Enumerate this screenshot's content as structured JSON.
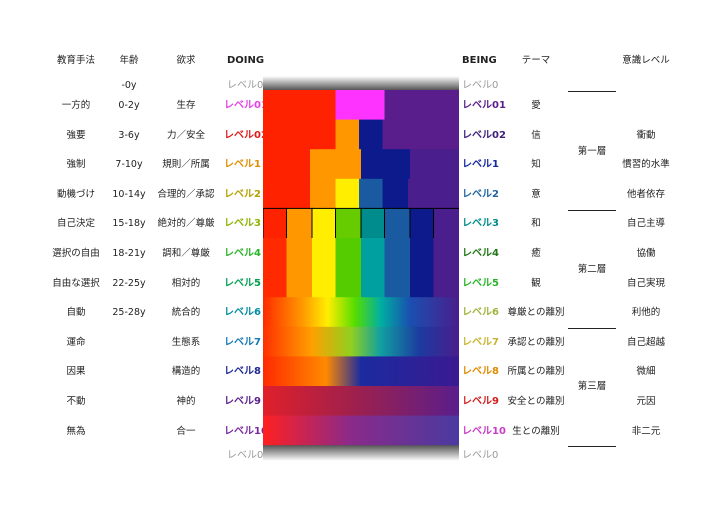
{
  "headers": {
    "method": "教育手法",
    "age": "年齢",
    "desire": "欲求",
    "doing": "DOING",
    "being": "BEING",
    "theme": "テーマ",
    "consciousness": "意識レベル"
  },
  "top_level0": {
    "age": "-0y",
    "doing": "レベル0",
    "being": "レベル0"
  },
  "bottom_level0": {
    "doing": "レベル0",
    "being": "レベル0"
  },
  "rows": [
    {
      "method": "一方的",
      "age": "0-2y",
      "desire": "生存",
      "doing": "レベル01",
      "being": "レベル01",
      "theme": "愛",
      "consciousness": "",
      "doing_color": "#e640e6",
      "being_color": "#5a1e8c"
    },
    {
      "method": "強要",
      "age": "3-6y",
      "desire": "力／安全",
      "doing": "レベル02",
      "being": "レベル02",
      "theme": "信",
      "consciousness": "衝動",
      "doing_color": "#e01b1b",
      "being_color": "#3c1e78"
    },
    {
      "method": "強制",
      "age": "7-10y",
      "desire": "規則／所属",
      "doing": "レベル1",
      "being": "レベル1",
      "theme": "知",
      "consciousness": "慣習的水準",
      "doing_color": "#e08c00",
      "being_color": "#1428a0"
    },
    {
      "method": "動機づけ",
      "age": "10-14y",
      "desire": "合理的／承認",
      "doing": "レベル2",
      "being": "レベル2",
      "theme": "意",
      "consciousness": "他者依存",
      "doing_color": "#b4a000",
      "being_color": "#1e64a0"
    },
    {
      "method": "自己決定",
      "age": "15-18y",
      "desire": "絶対的／尊厳",
      "doing": "レベル3",
      "being": "レベル3",
      "theme": "和",
      "consciousness": "自己主導",
      "doing_color": "#8cb400",
      "being_color": "#008c8c"
    },
    {
      "method": "選択の自由",
      "age": "18-21y",
      "desire": "調和／尊厳",
      "doing": "レベル4",
      "being": "レベル4",
      "theme": "癒",
      "consciousness": "協働",
      "doing_color": "#28b428",
      "being_color": "#1e7814"
    },
    {
      "method": "自由な選択",
      "age": "22-25y",
      "desire": "相対的",
      "doing": "レベル5",
      "being": "レベル5",
      "theme": "観",
      "consciousness": "自己実現",
      "doing_color": "#00a050",
      "being_color": "#28b428"
    },
    {
      "method": "自動",
      "age": "25-28y",
      "desire": "統合的",
      "doing": "レベル6",
      "being": "レベル6",
      "theme": "尊厳との離別",
      "consciousness": "利他的",
      "doing_color": "#008ca0",
      "being_color": "#a0b43c"
    },
    {
      "method": "運命",
      "age": "",
      "desire": "生態系",
      "doing": "レベル7",
      "being": "レベル7",
      "theme": "承認との離別",
      "consciousness": "自己超越",
      "doing_color": "#1478b4",
      "being_color": "#c8b432"
    },
    {
      "method": "因果",
      "age": "",
      "desire": "構造的",
      "doing": "レベル8",
      "being": "レベル8",
      "theme": "所属との離別",
      "consciousness": "微細",
      "doing_color": "#1e2896",
      "being_color": "#e08c00"
    },
    {
      "method": "不動",
      "age": "",
      "desire": "神的",
      "doing": "レベル9",
      "being": "レベル9",
      "theme": "安全との離別",
      "consciousness": "元因",
      "doing_color": "#5a1e8c",
      "being_color": "#d21e1e"
    },
    {
      "method": "無為",
      "age": "",
      "desire": "合一",
      "doing": "レベル10",
      "being": "レベル10",
      "theme": "生との離別",
      "consciousness": "非二元",
      "doing_color": "#7828a0",
      "being_color": "#c83cc8"
    }
  ],
  "tiers": [
    "第一層",
    "第二層",
    "第三層"
  ]
}
